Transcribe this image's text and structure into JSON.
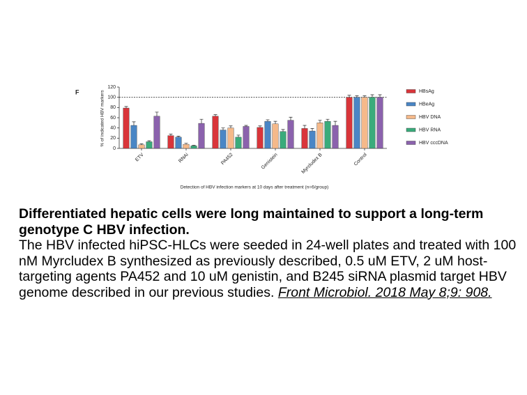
{
  "chart_data": {
    "type": "bar",
    "panel_label": "F",
    "y_label": "% of indicated HBV markers",
    "x_label": "Detection of HBV infection markers at 10 days after treatment (n=6/group)",
    "categories": [
      "ETV",
      "RNAi",
      "PA452",
      "Genistein",
      "Myrcludex B",
      "Control"
    ],
    "series": [
      {
        "name": "HBsAg",
        "color": "#d9353a",
        "values": [
          79,
          25,
          63,
          41,
          39,
          100
        ],
        "errors": [
          3,
          3,
          3,
          3,
          6,
          4
        ]
      },
      {
        "name": "HBeAg",
        "color": "#4a86c5",
        "values": [
          45,
          22,
          36,
          53,
          34,
          100
        ],
        "errors": [
          7,
          2,
          4,
          3,
          5,
          3
        ]
      },
      {
        "name": "HBV DNA",
        "color": "#f5b98a",
        "values": [
          7,
          8,
          40,
          48,
          50,
          100
        ],
        "errors": [
          2,
          2,
          4,
          5,
          5,
          3
        ]
      },
      {
        "name": "HBV RNA",
        "color": "#3aab7b",
        "values": [
          13,
          5,
          22,
          33,
          53,
          100
        ],
        "errors": [
          2,
          1,
          4,
          4,
          4,
          5
        ]
      },
      {
        "name": "HBV cccDNA",
        "color": "#8b62ad",
        "values": [
          63,
          49,
          43,
          55,
          45,
          100
        ],
        "errors": [
          8,
          8,
          2,
          6,
          8,
          5
        ]
      }
    ],
    "ylim": [
      0,
      120
    ],
    "yticks": [
      0,
      20,
      40,
      60,
      80,
      100,
      120
    ],
    "reference_line": 100,
    "legend": "right"
  },
  "caption": {
    "title": "Differentiated hepatic cells were long maintained to support a long-term genotype C HBV infection.",
    "body": "The HBV infected hiPSC-HLCs were seeded in 24-well plates and treated with 100 nM Myrcludex B synthesized as previously described, 0.5 uM ETV, 2 uM host-targeting agents PA452 and 10 uM genistin, and B245 siRNA plasmid target HBV genome described in our previous studies.",
    "citation": "Front Microbiol. 2018 May 8;9: 908."
  }
}
